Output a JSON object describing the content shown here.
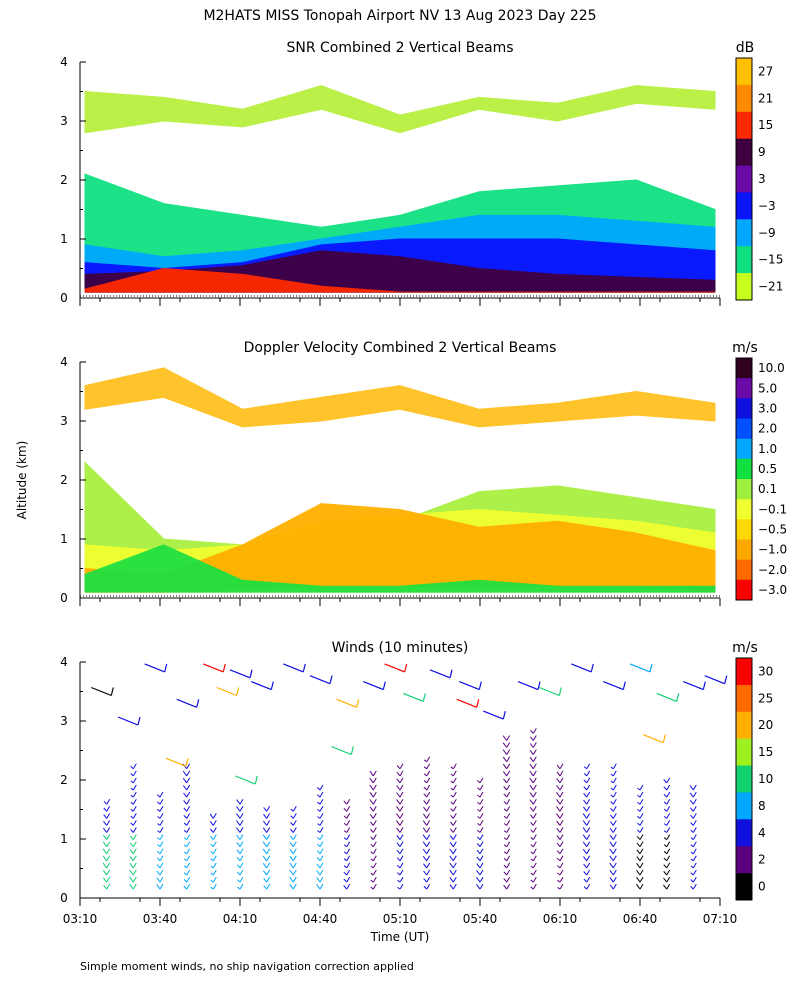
{
  "figure": {
    "main_title": "M2HATS MISS Tonopah Airport NV  13 Aug 2023 Day 225",
    "footnote": "Simple moment winds, no ship navigation correction applied",
    "ylabel": "Altitude (km)",
    "xlabel": "Time (UT)"
  },
  "chart_data": [
    {
      "type": "heatmap",
      "title": "SNR Combined 2 Vertical Beams",
      "units": "dB",
      "x_ticks": [
        "03:10",
        "03:40",
        "04:10",
        "04:40",
        "05:10",
        "05:40",
        "06:10",
        "06:40",
        "07:10"
      ],
      "y_ticks": [
        "0",
        "1",
        "2",
        "3",
        "4"
      ],
      "ylim": [
        0,
        4
      ],
      "colorbar_labels": [
        "27",
        "21",
        "15",
        "9",
        "3",
        "−3",
        "−9",
        "−15",
        "−21"
      ],
      "colorbar_colors": [
        "#ffc000",
        "#ff8c00",
        "#ff2a00",
        "#400040",
        "#6a0aa8",
        "#0a14ff",
        "#00a8ff",
        "#10e080",
        "#c8ff20"
      ],
      "layers": [
        {
          "name": "background-sparse",
          "color": "#b8f040",
          "top": [
            3.5,
            3.4,
            3.2,
            3.6,
            3.1,
            3.4,
            3.3,
            3.6,
            3.5
          ],
          "bottom": [
            2.8,
            3.0,
            2.9,
            3.2,
            2.8,
            3.2,
            3.0,
            3.3,
            3.2
          ]
        },
        {
          "name": "low-snr",
          "color": "#10e080",
          "top": [
            2.1,
            1.6,
            1.4,
            1.2,
            1.4,
            1.8,
            1.9,
            2.0,
            1.5
          ],
          "bottom": [
            0.1,
            0.1,
            0.1,
            0.1,
            0.1,
            0.1,
            0.1,
            0.1,
            0.1
          ]
        },
        {
          "name": "mid-snr",
          "color": "#00a8ff",
          "top": [
            0.9,
            0.7,
            0.8,
            1.0,
            1.2,
            1.4,
            1.4,
            1.3,
            1.2
          ],
          "bottom": [
            0.1,
            0.1,
            0.1,
            0.1,
            0.1,
            0.1,
            0.1,
            0.1,
            0.1
          ]
        },
        {
          "name": "higher-snr",
          "color": "#0a14ff",
          "top": [
            0.6,
            0.5,
            0.6,
            0.9,
            1.0,
            1.0,
            1.0,
            0.9,
            0.8
          ],
          "bottom": [
            0.1,
            0.1,
            0.1,
            0.1,
            0.1,
            0.1,
            0.1,
            0.1,
            0.1
          ]
        },
        {
          "name": "strong-snr",
          "color": "#400040",
          "top": [
            0.4,
            0.45,
            0.55,
            0.8,
            0.7,
            0.5,
            0.4,
            0.35,
            0.3
          ],
          "bottom": [
            0.1,
            0.1,
            0.1,
            0.1,
            0.1,
            0.1,
            0.1,
            0.1,
            0.1
          ]
        },
        {
          "name": "peak-snr",
          "color": "#ff2a00",
          "top": [
            0.15,
            0.5,
            0.4,
            0.2,
            0.1,
            0.1,
            0.1,
            0.1,
            0.1
          ],
          "bottom": [
            0.1,
            0.1,
            0.1,
            0.1,
            0.1,
            0.1,
            0.1,
            0.1,
            0.1
          ]
        }
      ]
    },
    {
      "type": "heatmap",
      "title": "Doppler Velocity Combined 2 Vertical Beams",
      "units": "m/s",
      "x_ticks": [
        "03:10",
        "03:40",
        "04:10",
        "04:40",
        "05:10",
        "05:40",
        "06:10",
        "06:40",
        "07:10"
      ],
      "y_ticks": [
        "0",
        "1",
        "2",
        "3",
        "4"
      ],
      "ylim": [
        0,
        4
      ],
      "colorbar_labels": [
        "10.0",
        "5.0",
        "3.0",
        "2.0",
        "1.0",
        "0.5",
        "0.1",
        "−0.1",
        "−0.5",
        "−1.0",
        "−2.0",
        "−3.0"
      ],
      "colorbar_colors": [
        "#300020",
        "#6a0aa8",
        "#1010e0",
        "#0050ff",
        "#00a8ff",
        "#10e040",
        "#a0f040",
        "#f0ff30",
        "#ffd800",
        "#ffa800",
        "#ff6a00",
        "#ff0000"
      ],
      "layers": [
        {
          "name": "upper-sparse",
          "color": "#ffc020",
          "top": [
            3.6,
            3.9,
            3.2,
            3.4,
            3.6,
            3.2,
            3.3,
            3.5,
            3.3
          ],
          "bottom": [
            3.2,
            3.4,
            2.9,
            3.0,
            3.2,
            2.9,
            3.0,
            3.1,
            3.0
          ]
        },
        {
          "name": "base-green",
          "color": "#a8f040",
          "top": [
            2.3,
            1.0,
            0.9,
            1.1,
            1.3,
            1.8,
            1.9,
            1.7,
            1.5
          ],
          "bottom": [
            0.1,
            0.1,
            0.1,
            0.1,
            0.1,
            0.1,
            0.1,
            0.1,
            0.1
          ]
        },
        {
          "name": "yellow-band",
          "color": "#f0ff30",
          "top": [
            0.9,
            0.8,
            0.9,
            1.3,
            1.4,
            1.5,
            1.4,
            1.3,
            1.1
          ],
          "bottom": [
            0.1,
            0.1,
            0.1,
            0.1,
            0.1,
            0.1,
            0.1,
            0.1,
            0.1
          ]
        },
        {
          "name": "orange-band",
          "color": "#ffb000",
          "top": [
            0.5,
            0.4,
            0.9,
            1.6,
            1.5,
            1.2,
            1.3,
            1.1,
            0.8
          ],
          "bottom": [
            0.1,
            0.1,
            0.15,
            0.2,
            0.2,
            0.2,
            0.2,
            0.2,
            0.1
          ]
        },
        {
          "name": "green-patch",
          "color": "#20e040",
          "top": [
            0.4,
            0.9,
            0.3,
            0.2,
            0.2,
            0.3,
            0.2,
            0.2,
            0.2
          ],
          "bottom": [
            0.1,
            0.1,
            0.1,
            0.1,
            0.1,
            0.1,
            0.1,
            0.1,
            0.1
          ]
        }
      ]
    },
    {
      "type": "scatter",
      "title": "Winds (10 minutes)",
      "units": "m/s",
      "x_ticks": [
        "03:10",
        "03:40",
        "04:10",
        "04:40",
        "05:10",
        "05:40",
        "06:10",
        "06:40",
        "07:10"
      ],
      "y_ticks": [
        "0",
        "1",
        "2",
        "3",
        "4"
      ],
      "ylim": [
        0,
        4
      ],
      "xlim_minutes": [
        0,
        240
      ],
      "colorbar_labels": [
        "30",
        "25",
        "20",
        "15",
        "10",
        "8",
        "4",
        "2",
        "0"
      ],
      "colorbar_colors": [
        "#ff0000",
        "#ff6a00",
        "#ffb000",
        "#a0f020",
        "#10d070",
        "#00a8ff",
        "#1010e0",
        "#5a0080",
        "#000000"
      ],
      "profile_times_minutes": [
        10,
        20,
        30,
        40,
        50,
        60,
        70,
        80,
        90,
        100,
        110,
        120,
        130,
        140,
        150,
        160,
        170,
        180,
        190,
        200,
        210,
        220,
        230
      ],
      "profile_top_km": [
        1.6,
        2.2,
        1.8,
        2.2,
        1.4,
        1.6,
        1.5,
        1.5,
        1.9,
        1.7,
        2.1,
        2.2,
        2.4,
        2.3,
        2.0,
        2.7,
        2.8,
        2.3,
        2.2,
        2.2,
        1.9,
        2.0,
        1.9
      ],
      "profile_color_lower": [
        "#10d070",
        "#10d070",
        "#00a8ff",
        "#00a8ff",
        "#00a8ff",
        "#00a8ff",
        "#00a8ff",
        "#00a8ff",
        "#00a8ff",
        "#1010e0",
        "#5a0080",
        "#1010e0",
        "#1010e0",
        "#1010e0",
        "#1010e0",
        "#5a0080",
        "#5a0080",
        "#5a0080",
        "#1010e0",
        "#1010e0",
        "#000000",
        "#000000",
        "#1010e0"
      ],
      "profile_color_upper": [
        "#1010e0",
        "#1010e0",
        "#1010e0",
        "#1010e0",
        "#1010e0",
        "#1010e0",
        "#1010e0",
        "#1010e0",
        "#1010e0",
        "#5a0080",
        "#5a0080",
        "#5a0080",
        "#5a0080",
        "#5a0080",
        "#5a0080",
        "#5a0080",
        "#5a0080",
        "#5a0080",
        "#1010e0",
        "#1010e0",
        "#1010e0",
        "#1010e0",
        "#1010e0"
      ],
      "upper_barbs": [
        {
          "t": 8,
          "z": 3.5,
          "c": "#000000"
        },
        {
          "t": 18,
          "z": 3.0,
          "c": "#1010e0"
        },
        {
          "t": 28,
          "z": 3.9,
          "c": "#1010e0"
        },
        {
          "t": 40,
          "z": 3.3,
          "c": "#1010e0"
        },
        {
          "t": 50,
          "z": 3.9,
          "c": "#ff0000"
        },
        {
          "t": 60,
          "z": 3.8,
          "c": "#1010e0"
        },
        {
          "t": 55,
          "z": 3.5,
          "c": "#ffb000"
        },
        {
          "t": 68,
          "z": 3.6,
          "c": "#1010e0"
        },
        {
          "t": 80,
          "z": 3.9,
          "c": "#1010e0"
        },
        {
          "t": 90,
          "z": 3.7,
          "c": "#1010e0"
        },
        {
          "t": 100,
          "z": 3.3,
          "c": "#ffb000"
        },
        {
          "t": 118,
          "z": 3.9,
          "c": "#ff0000"
        },
        {
          "t": 110,
          "z": 3.6,
          "c": "#1010e0"
        },
        {
          "t": 125,
          "z": 3.4,
          "c": "#10d070"
        },
        {
          "t": 135,
          "z": 3.8,
          "c": "#1010e0"
        },
        {
          "t": 146,
          "z": 3.6,
          "c": "#1010e0"
        },
        {
          "t": 155,
          "z": 3.1,
          "c": "#1010e0"
        },
        {
          "t": 168,
          "z": 3.6,
          "c": "#1010e0"
        },
        {
          "t": 176,
          "z": 3.5,
          "c": "#10d070"
        },
        {
          "t": 188,
          "z": 3.9,
          "c": "#1010e0"
        },
        {
          "t": 200,
          "z": 3.6,
          "c": "#1010e0"
        },
        {
          "t": 210,
          "z": 3.9,
          "c": "#00a8ff"
        },
        {
          "t": 220,
          "z": 3.4,
          "c": "#10d070"
        },
        {
          "t": 230,
          "z": 3.6,
          "c": "#1010e0"
        },
        {
          "t": 238,
          "z": 3.7,
          "c": "#1010e0"
        },
        {
          "t": 145,
          "z": 3.3,
          "c": "#ff0000"
        },
        {
          "t": 98,
          "z": 2.5,
          "c": "#10d070"
        },
        {
          "t": 215,
          "z": 2.7,
          "c": "#ffb000"
        },
        {
          "t": 62,
          "z": 2.0,
          "c": "#10d070"
        },
        {
          "t": 36,
          "z": 2.3,
          "c": "#ffb000"
        }
      ]
    }
  ]
}
